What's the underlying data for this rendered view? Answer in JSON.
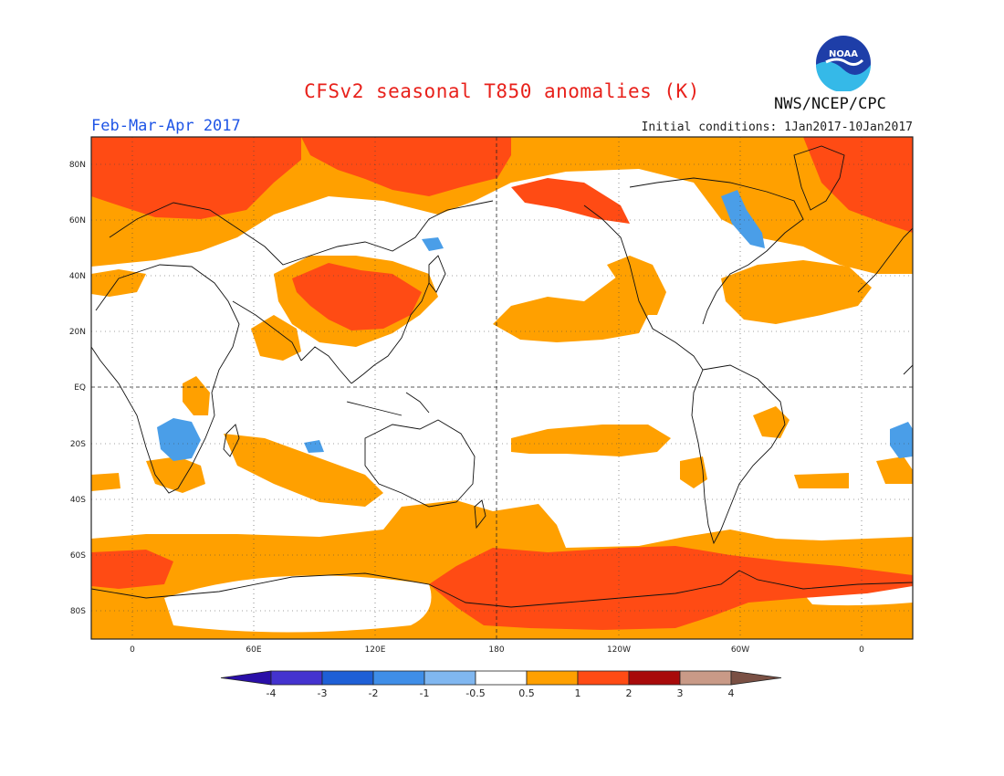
{
  "title": "CFSv2 seasonal T850 anomalies (K)",
  "season": "Feb-Mar-Apr 2017",
  "initial_conditions": "Initial conditions: 1Jan2017-10Jan2017",
  "organization": "NWS/NCEP/CPC",
  "logo_text": "NOAA",
  "map": {
    "lat_ticks": [
      "80N",
      "60N",
      "40N",
      "20N",
      "EQ",
      "20S",
      "40S",
      "60S",
      "80S"
    ],
    "lon_ticks": [
      "0",
      "60E",
      "120E",
      "180",
      "120W",
      "60W",
      "0"
    ]
  },
  "colorbar": {
    "labels": [
      "-4",
      "-3",
      "-2",
      "-1",
      "-0.5",
      "0.5",
      "1",
      "2",
      "3",
      "4"
    ],
    "colors": [
      "#2a0fa8",
      "#4433cf",
      "#1e5fd6",
      "#3f8ee8",
      "#80b7f0",
      "#ffffff",
      "#ffa000",
      "#ff4b14",
      "#a80a0a",
      "#c99a87",
      "#7a5044"
    ]
  },
  "shading_colors": {
    "light_orange": "#ffa000",
    "red_orange": "#ff4b14",
    "light_blue": "#4a9ee8",
    "white": "#ffffff"
  }
}
